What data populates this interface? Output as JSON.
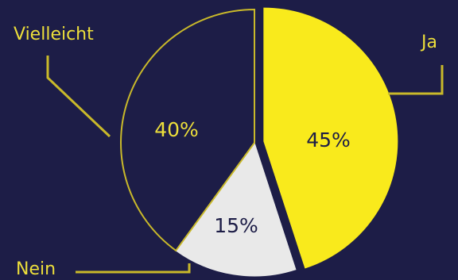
{
  "chart_data": {
    "type": "pie",
    "title": "",
    "slices": [
      {
        "label": "Ja",
        "value": 45,
        "value_label": "45%",
        "fill": "#f9ea1c",
        "stroke": "#f9ea1c",
        "text_color": "#1d1d47",
        "exploded": true
      },
      {
        "label": "Nein",
        "value": 15,
        "value_label": "15%",
        "fill": "#e9e9e9",
        "stroke": "#e9e9e9",
        "text_color": "#1d1d47",
        "exploded": false
      },
      {
        "label": "Vielleicht",
        "value": 40,
        "value_label": "40%",
        "fill": "#1d1d47",
        "stroke": "#c9b92a",
        "text_color": "#eddf3b",
        "exploded": false
      }
    ],
    "start_angle_deg": 0,
    "direction": "clockwise",
    "legend": "none",
    "label_placement": "outside-with-leader-lines"
  },
  "colors": {
    "background": "#1d1d47",
    "label": "#eddf3b",
    "leader": "#c9b92a"
  }
}
